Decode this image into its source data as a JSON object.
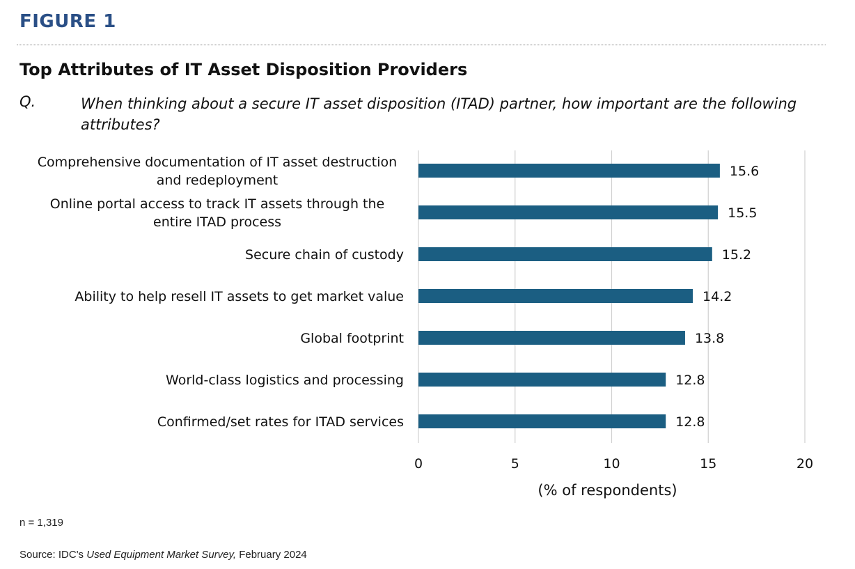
{
  "figure_label": "FIGURE 1",
  "title": "Top Attributes of IT Asset Disposition Providers",
  "question": {
    "label": "Q.",
    "text": "When thinking about a secure IT asset disposition (ITAD) partner, how important are the following attributes?"
  },
  "footer": {
    "n": "n = 1,319",
    "source_prefix": "Source: IDC's ",
    "source_title": "Used Equipment Market Survey,",
    "source_suffix": " February 2024"
  },
  "colors": {
    "bar": "#1b5e82",
    "figure_label": "#2a4f86",
    "grid": "#d0d0d0"
  },
  "chart_data": {
    "type": "bar",
    "orientation": "horizontal",
    "categories": [
      [
        "Comprehensive documentation of IT asset destruction",
        "and redeployment"
      ],
      [
        "Online portal access to track IT assets through the",
        "entire ITAD process"
      ],
      [
        "Secure chain of custody"
      ],
      [
        "Ability to help resell IT assets to get market value"
      ],
      [
        "Global footprint"
      ],
      [
        "World-class logistics and processing"
      ],
      [
        "Confirmed/set rates for ITAD services"
      ]
    ],
    "values": [
      15.6,
      15.5,
      15.2,
      14.2,
      13.8,
      12.8,
      12.8
    ],
    "value_labels": [
      "15.6",
      "15.5",
      "15.2",
      "14.2",
      "13.8",
      "12.8",
      "12.8"
    ],
    "xlim": [
      0,
      20
    ],
    "xticks": [
      0,
      5,
      10,
      15,
      20
    ],
    "xtick_labels": [
      "0",
      "5",
      "10",
      "15",
      "20"
    ],
    "xlabel": "(% of respondents)",
    "grid": true
  }
}
